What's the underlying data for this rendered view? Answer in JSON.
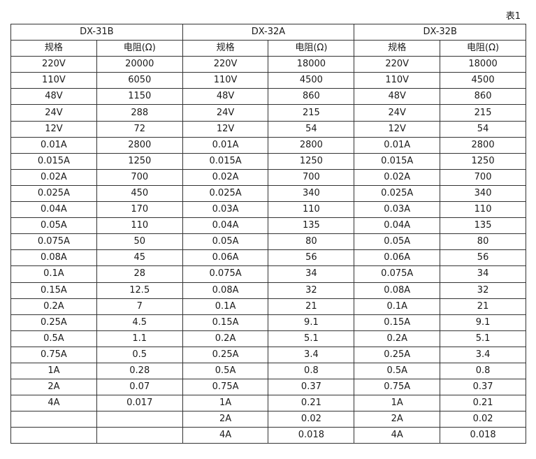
{
  "caption": "表1",
  "groups": [
    "DX-31B",
    "DX-32A",
    "DX-32B"
  ],
  "subheaders": [
    "规格",
    "电阻(Ω)",
    "规格",
    "电阻(Ω)",
    "规格",
    "电阻(Ω)"
  ],
  "rows": [
    [
      "220V",
      "20000",
      "220V",
      "18000",
      "220V",
      "18000"
    ],
    [
      "110V",
      "6050",
      "110V",
      "4500",
      "110V",
      "4500"
    ],
    [
      "48V",
      "1150",
      "48V",
      "860",
      "48V",
      "860"
    ],
    [
      "24V",
      "288",
      "24V",
      "215",
      "24V",
      "215"
    ],
    [
      "12V",
      "72",
      "12V",
      "54",
      "12V",
      "54"
    ],
    [
      "0.01A",
      "2800",
      "0.01A",
      "2800",
      "0.01A",
      "2800"
    ],
    [
      "0.015A",
      "1250",
      "0.015A",
      "1250",
      "0.015A",
      "1250"
    ],
    [
      "0.02A",
      "700",
      "0.02A",
      "700",
      "0.02A",
      "700"
    ],
    [
      "0.025A",
      "450",
      "0.025A",
      "340",
      "0.025A",
      "340"
    ],
    [
      "0.04A",
      "170",
      "0.03A",
      "110",
      "0.03A",
      "110"
    ],
    [
      "0.05A",
      "110",
      "0.04A",
      "135",
      "0.04A",
      "135"
    ],
    [
      "0.075A",
      "50",
      "0.05A",
      "80",
      "0.05A",
      "80"
    ],
    [
      "0.08A",
      "45",
      "0.06A",
      "56",
      "0.06A",
      "56"
    ],
    [
      "0.1A",
      "28",
      "0.075A",
      "34",
      "0.075A",
      "34"
    ],
    [
      "0.15A",
      "12.5",
      "0.08A",
      "32",
      "0.08A",
      "32"
    ],
    [
      "0.2A",
      "7",
      "0.1A",
      "21",
      "0.1A",
      "21"
    ],
    [
      "0.25A",
      "4.5",
      "0.15A",
      "9.1",
      "0.15A",
      "9.1"
    ],
    [
      "0.5A",
      "1.1",
      "0.2A",
      "5.1",
      "0.2A",
      "5.1"
    ],
    [
      "0.75A",
      "0.5",
      "0.25A",
      "3.4",
      "0.25A",
      "3.4"
    ],
    [
      "1A",
      "0.28",
      "0.5A",
      "0.8",
      "0.5A",
      "0.8"
    ],
    [
      "2A",
      "0.07",
      "0.75A",
      "0.37",
      "0.75A",
      "0.37"
    ],
    [
      "4A",
      "0.017",
      "1A",
      "0.21",
      "1A",
      "0.21"
    ],
    [
      "",
      "",
      "2A",
      "0.02",
      "2A",
      "0.02"
    ],
    [
      "",
      "",
      "4A",
      "0.018",
      "4A",
      "0.018"
    ]
  ]
}
